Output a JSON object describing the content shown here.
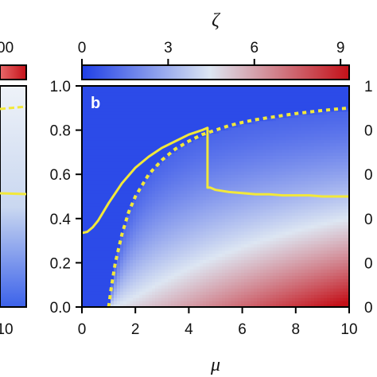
{
  "colors": {
    "cb_low": "#1f3fe6",
    "cb_mid": "#dde6f2",
    "cb_high": "#c41018",
    "heat_blue": "#2545e8",
    "curve": "#f2e83a"
  },
  "left_panel": {
    "colorbar_tick_text": "00",
    "x_tick_text": "10"
  },
  "right_tick_text": [
    "1",
    "0",
    "0",
    "0",
    "0",
    "0"
  ],
  "chart_data": {
    "type": "heatmap",
    "panel_label": "b",
    "colorbar": {
      "label": "ζ",
      "range": [
        0,
        9.3
      ],
      "ticks": [
        0,
        3,
        6,
        9
      ],
      "tick_labels": [
        "0",
        "3",
        "6",
        "9"
      ],
      "colormap": "blue-white-red"
    },
    "xlabel": "μ",
    "ylabel": "",
    "xlim": [
      0,
      10
    ],
    "ylim": [
      0,
      1
    ],
    "xticks": [
      0,
      2,
      4,
      6,
      8,
      10
    ],
    "xtick_labels": [
      "0",
      "2",
      "4",
      "6",
      "8",
      "10"
    ],
    "yticks": [
      0,
      0.2,
      0.4,
      0.6,
      0.8,
      1.0
    ],
    "ytick_labels": [
      "0.0",
      "0.2",
      "0.4",
      "0.6",
      "0.8",
      "1.0"
    ],
    "grid": false,
    "series": [
      {
        "style": "solid",
        "x": [
          0,
          0.2,
          0.4,
          0.6,
          0.8,
          1.0,
          1.5,
          2.0,
          2.5,
          3.0,
          3.5,
          4.0,
          4.5,
          4.7,
          4.7,
          4.8,
          5.0,
          5.5,
          6.0,
          6.5,
          7.0,
          7.5,
          8.0,
          8.5,
          9.0,
          9.5,
          10.0
        ],
        "y": [
          0.335,
          0.34,
          0.36,
          0.39,
          0.43,
          0.47,
          0.56,
          0.63,
          0.68,
          0.72,
          0.75,
          0.78,
          0.8,
          0.81,
          0.54,
          0.54,
          0.53,
          0.52,
          0.515,
          0.51,
          0.51,
          0.505,
          0.505,
          0.505,
          0.5,
          0.5,
          0.5
        ]
      },
      {
        "style": "dotted",
        "x": [
          1.0,
          1.1,
          1.25,
          1.5,
          1.75,
          2.0,
          2.5,
          3.0,
          3.5,
          4.0,
          4.5,
          5.0,
          5.5,
          6.0,
          6.5,
          7.0,
          7.5,
          8.0,
          8.5,
          9.0,
          9.5,
          10.0
        ],
        "y": [
          0.0,
          0.09,
          0.2,
          0.33,
          0.43,
          0.5,
          0.6,
          0.665,
          0.715,
          0.75,
          0.78,
          0.8,
          0.82,
          0.835,
          0.847,
          0.857,
          0.866,
          0.875,
          0.882,
          0.889,
          0.895,
          0.9
        ]
      }
    ]
  }
}
